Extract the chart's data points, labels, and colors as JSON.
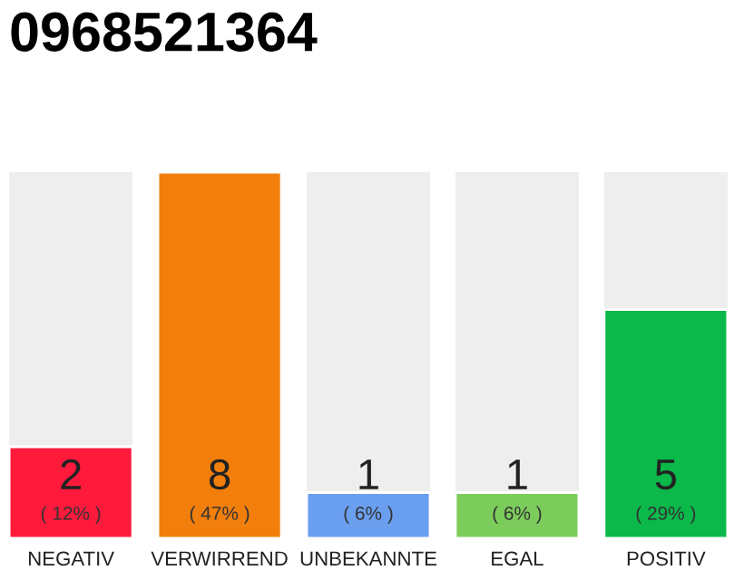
{
  "chart_data": {
    "type": "bar",
    "title": "0968521364",
    "categories": [
      "NEGATIV",
      "VERWIRREND",
      "UNBEKANNTE",
      "EGAL",
      "POSITIV"
    ],
    "values": [
      2,
      8,
      1,
      1,
      5
    ],
    "colors": [
      "#ff1a3c",
      "#f27e0b",
      "#6a9ff0",
      "#7ccc5c",
      "#0bb84a"
    ],
    "value_labels": [
      "2\n( 12% )",
      "8\n( 47% )",
      "1\n( 6% )",
      "1\n( 6% )",
      "5\n( 29% )"
    ],
    "grid": false,
    "legend": false
  }
}
